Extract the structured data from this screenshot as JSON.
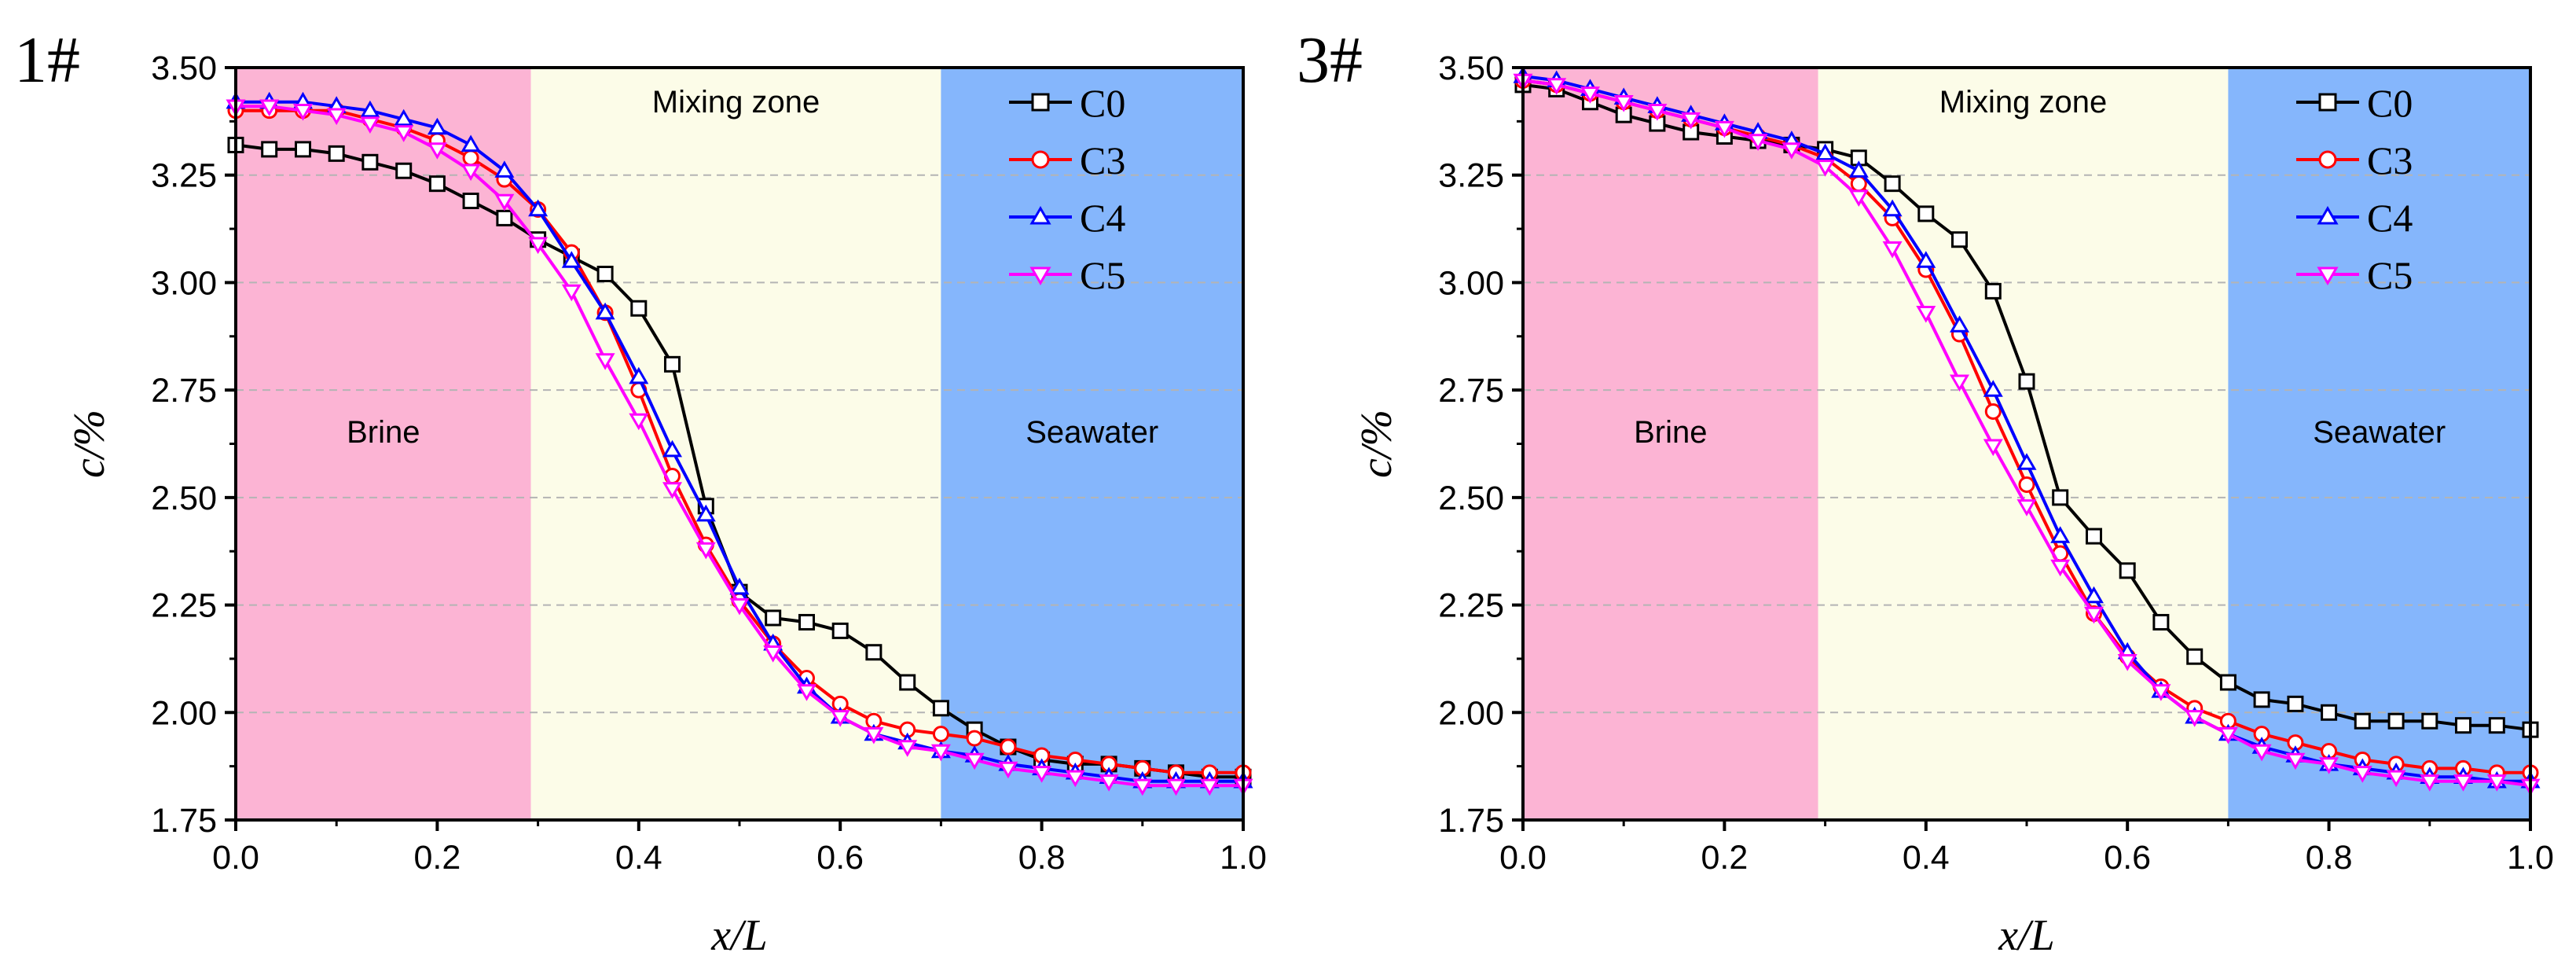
{
  "chart_data": [
    {
      "panel_label": "1#",
      "type": "line",
      "xlabel": "x/L",
      "ylabel": "c/%",
      "xlim": [
        0.0,
        1.0
      ],
      "ylim": [
        1.75,
        3.5
      ],
      "xticks": [
        "0.0",
        "0.2",
        "0.4",
        "0.6",
        "0.8",
        "1.0"
      ],
      "yticks": [
        "1.75",
        "2.00",
        "2.25",
        "2.50",
        "2.75",
        "3.00",
        "3.25",
        "3.50"
      ],
      "grid": "horizontal dashed",
      "legend_position": "top-right",
      "regions": [
        {
          "label": "Brine",
          "x0": 0.0,
          "x1": 0.293,
          "color": "#fcb4d4"
        },
        {
          "label": "Mixing zone",
          "x0": 0.293,
          "x1": 0.7,
          "color": "#fcfce8"
        },
        {
          "label": "Seawater",
          "x0": 0.7,
          "x1": 1.0,
          "color": "#85b6fc"
        }
      ],
      "x": [
        0.0,
        0.0333,
        0.0667,
        0.1,
        0.1333,
        0.1667,
        0.2,
        0.2333,
        0.2667,
        0.3,
        0.3333,
        0.3667,
        0.4,
        0.4333,
        0.4667,
        0.5,
        0.5333,
        0.5667,
        0.6,
        0.6333,
        0.6667,
        0.7,
        0.7333,
        0.7667,
        0.8,
        0.8333,
        0.8667,
        0.9,
        0.9333,
        0.9667,
        1.0
      ],
      "series": [
        {
          "name": "C0",
          "color": "#000000",
          "marker": "square",
          "values": [
            3.32,
            3.31,
            3.31,
            3.3,
            3.28,
            3.26,
            3.23,
            3.19,
            3.15,
            3.1,
            3.06,
            3.02,
            2.94,
            2.81,
            2.48,
            2.28,
            2.22,
            2.21,
            2.19,
            2.14,
            2.07,
            2.01,
            1.96,
            1.92,
            1.89,
            1.88,
            1.88,
            1.87,
            1.86,
            1.85,
            1.85
          ]
        },
        {
          "name": "C3",
          "color": "#ff0000",
          "marker": "circle",
          "values": [
            3.4,
            3.4,
            3.4,
            3.4,
            3.38,
            3.36,
            3.33,
            3.29,
            3.24,
            3.17,
            3.07,
            2.93,
            2.75,
            2.55,
            2.39,
            2.26,
            2.16,
            2.08,
            2.02,
            1.98,
            1.96,
            1.95,
            1.94,
            1.92,
            1.9,
            1.89,
            1.88,
            1.87,
            1.86,
            1.86,
            1.86
          ]
        },
        {
          "name": "C4",
          "color": "#0000ff",
          "marker": "triangle-up",
          "values": [
            3.42,
            3.42,
            3.42,
            3.41,
            3.4,
            3.38,
            3.36,
            3.32,
            3.26,
            3.17,
            3.05,
            2.93,
            2.78,
            2.61,
            2.46,
            2.29,
            2.16,
            2.06,
            1.99,
            1.95,
            1.93,
            1.91,
            1.9,
            1.88,
            1.87,
            1.86,
            1.85,
            1.84,
            1.84,
            1.84,
            1.84
          ]
        },
        {
          "name": "C5",
          "color": "#ff00ff",
          "marker": "triangle-down",
          "values": [
            3.41,
            3.41,
            3.4,
            3.39,
            3.37,
            3.35,
            3.31,
            3.26,
            3.19,
            3.09,
            2.98,
            2.82,
            2.68,
            2.52,
            2.38,
            2.25,
            2.14,
            2.05,
            1.99,
            1.95,
            1.92,
            1.91,
            1.89,
            1.87,
            1.86,
            1.85,
            1.84,
            1.83,
            1.83,
            1.83,
            1.83
          ]
        }
      ]
    },
    {
      "panel_label": "3#",
      "type": "line",
      "xlabel": "x/L",
      "ylabel": "c/%",
      "xlim": [
        0.0,
        1.0
      ],
      "ylim": [
        1.75,
        3.5
      ],
      "xticks": [
        "0.0",
        "0.2",
        "0.4",
        "0.6",
        "0.8",
        "1.0"
      ],
      "yticks": [
        "1.75",
        "2.00",
        "2.25",
        "2.50",
        "2.75",
        "3.00",
        "3.25",
        "3.50"
      ],
      "grid": "horizontal dashed",
      "legend_position": "top-right",
      "regions": [
        {
          "label": "Brine",
          "x0": 0.0,
          "x1": 0.293,
          "color": "#fcb4d4"
        },
        {
          "label": "Mixing zone",
          "x0": 0.293,
          "x1": 0.7,
          "color": "#fcfce8"
        },
        {
          "label": "Seawater",
          "x0": 0.7,
          "x1": 1.0,
          "color": "#85b6fc"
        }
      ],
      "x": [
        0.0,
        0.0333,
        0.0667,
        0.1,
        0.1333,
        0.1667,
        0.2,
        0.2333,
        0.2667,
        0.3,
        0.3333,
        0.3667,
        0.4,
        0.4333,
        0.4667,
        0.5,
        0.5333,
        0.5667,
        0.6,
        0.6333,
        0.6667,
        0.7,
        0.7333,
        0.7667,
        0.8,
        0.8333,
        0.8667,
        0.9,
        0.9333,
        0.9667,
        1.0
      ],
      "series": [
        {
          "name": "C0",
          "color": "#000000",
          "marker": "square",
          "values": [
            3.46,
            3.45,
            3.42,
            3.39,
            3.37,
            3.35,
            3.34,
            3.33,
            3.32,
            3.31,
            3.29,
            3.23,
            3.16,
            3.1,
            2.98,
            2.77,
            2.5,
            2.41,
            2.33,
            2.21,
            2.13,
            2.07,
            2.03,
            2.02,
            2.0,
            1.98,
            1.98,
            1.98,
            1.97,
            1.97,
            1.96
          ]
        },
        {
          "name": "C3",
          "color": "#ff0000",
          "marker": "circle",
          "values": [
            3.47,
            3.46,
            3.44,
            3.42,
            3.4,
            3.38,
            3.36,
            3.34,
            3.32,
            3.29,
            3.23,
            3.15,
            3.03,
            2.88,
            2.7,
            2.53,
            2.37,
            2.23,
            2.13,
            2.06,
            2.01,
            1.98,
            1.95,
            1.93,
            1.91,
            1.89,
            1.88,
            1.87,
            1.87,
            1.86,
            1.86
          ]
        },
        {
          "name": "C4",
          "color": "#0000ff",
          "marker": "triangle-up",
          "values": [
            3.48,
            3.47,
            3.45,
            3.43,
            3.41,
            3.39,
            3.37,
            3.35,
            3.33,
            3.3,
            3.26,
            3.17,
            3.05,
            2.9,
            2.75,
            2.58,
            2.41,
            2.27,
            2.14,
            2.05,
            1.99,
            1.95,
            1.92,
            1.9,
            1.88,
            1.87,
            1.86,
            1.85,
            1.85,
            1.84,
            1.84
          ]
        },
        {
          "name": "C5",
          "color": "#ff00ff",
          "marker": "triangle-down",
          "values": [
            3.47,
            3.46,
            3.44,
            3.42,
            3.4,
            3.38,
            3.36,
            3.33,
            3.31,
            3.27,
            3.2,
            3.08,
            2.93,
            2.77,
            2.62,
            2.48,
            2.34,
            2.23,
            2.12,
            2.05,
            1.99,
            1.95,
            1.91,
            1.89,
            1.88,
            1.86,
            1.85,
            1.84,
            1.84,
            1.84,
            1.83
          ]
        }
      ]
    }
  ]
}
